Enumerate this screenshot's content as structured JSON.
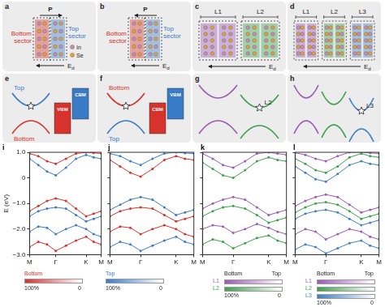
{
  "diagrams": [
    {
      "panel": "a",
      "polarization": "P",
      "direction": "right",
      "sectors": [
        [
          "Bottom",
          "sector"
        ],
        [
          "Top",
          "sector"
        ]
      ],
      "atoms": [
        "In",
        "Se"
      ],
      "field": {
        "text": "E",
        "sub": "d"
      }
    },
    {
      "panel": "b",
      "polarization": "P",
      "direction": "left",
      "sectors": [
        [
          "Bottom",
          "sector"
        ],
        [
          "Top",
          "sector"
        ]
      ],
      "field": {
        "text": "E",
        "sub": "d"
      }
    },
    {
      "panel": "c",
      "layers": [
        "L1",
        "L2"
      ],
      "field": {
        "text": "E",
        "sub": "d"
      }
    },
    {
      "panel": "d",
      "layers": [
        "L1",
        "L2",
        "L3"
      ],
      "field": {
        "text": "E",
        "sub": "d"
      }
    },
    {
      "panel": "e",
      "bands": [
        "Top",
        "Bottom"
      ],
      "boxes": [
        {
          "label": "VBM",
          "band": "Bottom"
        },
        {
          "label": "CBM",
          "band": "Top"
        }
      ]
    },
    {
      "panel": "f",
      "bands": [
        "Bottom",
        "Top"
      ],
      "boxes": [
        {
          "label": "CBM",
          "band": "Bottom"
        },
        {
          "label": "VBM",
          "band": "Top"
        }
      ]
    },
    {
      "panel": "g",
      "bands": [
        "L1",
        "L2"
      ],
      "star_label": "L2"
    },
    {
      "panel": "h",
      "bands": [
        "L1",
        "L2",
        "L3"
      ],
      "star_label": "L3"
    }
  ],
  "chart_data": [
    {
      "type": "line",
      "panel": "i",
      "y_label": "E (eV)",
      "tick_labels": true,
      "grid": false,
      "marker": "circle",
      "line_style": "solid",
      "x": [
        0,
        0.289,
        0.577,
        0.866,
        1.2,
        1.533,
        1.866,
        2.116,
        2.366
      ],
      "xlim": [
        0,
        2.366
      ],
      "xticks": [
        {
          "value": 0,
          "label": "M"
        },
        {
          "value": 0.866,
          "label": "Γ"
        },
        {
          "value": 1.866,
          "label": "K"
        },
        {
          "value": 2.366,
          "label": "M"
        }
      ],
      "ylim": [
        -3,
        1
      ],
      "yticks": [
        {
          "value": -3,
          "label": "−3.0"
        },
        {
          "value": -2,
          "label": "−2.0"
        },
        {
          "value": -1,
          "label": "−1.0"
        },
        0,
        {
          "value": 1,
          "label": "1.0"
        }
      ],
      "series": [
        {
          "name": "Top",
          "color": "#3a7bc8",
          "values": [
            0.75,
            0.5,
            0.25,
            0.1,
            0.4,
            0.75,
            0.9,
            0.8,
            0.75
          ]
        },
        {
          "name": "Bottom",
          "color": "#d7322b",
          "values": [
            0.95,
            0.85,
            0.65,
            0.55,
            0.75,
            0.95,
            1.0,
            0.98,
            0.95
          ]
        },
        {
          "name": "Bottom",
          "color": "#d7322b",
          "values": [
            -1.3,
            -1.1,
            -0.9,
            -0.8,
            -0.9,
            -1.2,
            -1.5,
            -1.4,
            -1.3
          ]
        },
        {
          "name": "Top",
          "color": "#3a7bc8",
          "values": [
            -1.5,
            -1.3,
            -1.2,
            -1.15,
            -1.2,
            -1.45,
            -1.7,
            -1.6,
            -1.5
          ]
        },
        {
          "name": "Top",
          "color": "#3a7bc8",
          "values": [
            -2.1,
            -1.9,
            -1.95,
            -2.2,
            -2.0,
            -1.85,
            -2.0,
            -2.2,
            -2.3
          ]
        },
        {
          "name": "Bottom",
          "color": "#d7322b",
          "values": [
            -2.7,
            -2.5,
            -2.6,
            -2.85,
            -2.65,
            -2.45,
            -2.3,
            -2.5,
            -2.6
          ]
        }
      ]
    },
    {
      "type": "line",
      "panel": "j",
      "tick_labels": "x",
      "grid": false,
      "marker": "circle",
      "line_style": "solid",
      "x": [
        0,
        0.289,
        0.577,
        0.866,
        1.2,
        1.533,
        1.866,
        2.116,
        2.366
      ],
      "xlim": [
        0,
        2.366
      ],
      "xticks": [
        {
          "value": 0,
          "label": "M"
        },
        {
          "value": 0.866,
          "label": "Γ"
        },
        {
          "value": 1.866,
          "label": "K"
        },
        {
          "value": 2.366,
          "label": "M"
        }
      ],
      "ylim": [
        -3,
        1
      ],
      "yticks": [
        {
          "value": -3,
          "label": "−3.0"
        },
        {
          "value": -2,
          "label": "−2.0"
        },
        {
          "value": -1,
          "label": "−1.0"
        },
        0,
        {
          "value": 1,
          "label": "1.0"
        }
      ],
      "series": [
        {
          "name": "Bottom",
          "color": "#d7322b",
          "values": [
            0.7,
            0.45,
            0.2,
            0.05,
            0.35,
            0.7,
            0.85,
            0.75,
            0.7
          ]
        },
        {
          "name": "Top",
          "color": "#3a7bc8",
          "values": [
            0.95,
            0.85,
            0.65,
            0.5,
            0.75,
            0.95,
            1.0,
            0.97,
            0.95
          ]
        },
        {
          "name": "Top",
          "color": "#3a7bc8",
          "values": [
            -1.25,
            -1.05,
            -0.85,
            -0.75,
            -0.85,
            -1.15,
            -1.45,
            -1.35,
            -1.25
          ]
        },
        {
          "name": "Bottom",
          "color": "#d7322b",
          "values": [
            -1.5,
            -1.3,
            -1.2,
            -1.15,
            -1.2,
            -1.45,
            -1.7,
            -1.6,
            -1.5
          ]
        },
        {
          "name": "Bottom",
          "color": "#d7322b",
          "values": [
            -2.1,
            -1.9,
            -1.95,
            -2.2,
            -2.0,
            -1.85,
            -2.0,
            -2.2,
            -2.3
          ]
        },
        {
          "name": "Top",
          "color": "#3a7bc8",
          "values": [
            -2.7,
            -2.5,
            -2.6,
            -2.85,
            -2.65,
            -2.45,
            -2.3,
            -2.5,
            -2.6
          ]
        }
      ]
    },
    {
      "type": "line",
      "panel": "k",
      "tick_labels": "x",
      "grid": false,
      "marker": "circle",
      "line_style": "solid",
      "x": [
        0,
        0.289,
        0.577,
        0.866,
        1.2,
        1.533,
        1.866,
        2.116,
        2.366
      ],
      "xlim": [
        0,
        2.366
      ],
      "xticks": [
        {
          "value": 0,
          "label": "M"
        },
        {
          "value": 0.866,
          "label": "Γ"
        },
        {
          "value": 1.866,
          "label": "K"
        },
        {
          "value": 2.366,
          "label": "M"
        }
      ],
      "ylim": [
        -3,
        1
      ],
      "yticks": [
        {
          "value": -3,
          "label": "−3.0"
        },
        {
          "value": -2,
          "label": "−2.0"
        },
        {
          "value": -1,
          "label": "−1.0"
        },
        0,
        {
          "value": 1,
          "label": "1.0"
        }
      ],
      "series": [
        {
          "name": "L2",
          "color": "#3aa14a",
          "values": [
            0.6,
            0.35,
            0.1,
            0.0,
            0.3,
            0.65,
            0.8,
            0.7,
            0.65
          ]
        },
        {
          "name": "L1",
          "color": "#9b59b6",
          "values": [
            0.95,
            0.75,
            0.5,
            0.4,
            0.65,
            0.95,
            1.0,
            0.95,
            0.9
          ]
        },
        {
          "name": "L1",
          "color": "#9b59b6",
          "values": [
            -1.2,
            -1.0,
            -0.85,
            -0.75,
            -0.85,
            -1.15,
            -1.45,
            -1.35,
            -1.25
          ]
        },
        {
          "name": "L2",
          "color": "#3aa14a",
          "values": [
            -1.5,
            -1.3,
            -1.15,
            -1.1,
            -1.2,
            -1.45,
            -1.75,
            -1.65,
            -1.55
          ]
        },
        {
          "name": "L1",
          "color": "#9b59b6",
          "values": [
            -2.0,
            -1.85,
            -1.9,
            -2.15,
            -2.0,
            -1.8,
            -1.95,
            -2.1,
            -2.2
          ]
        },
        {
          "name": "L2",
          "color": "#3aa14a",
          "values": [
            -2.6,
            -2.4,
            -2.5,
            -2.75,
            -2.55,
            -2.35,
            -2.25,
            -2.45,
            -2.55
          ]
        }
      ]
    },
    {
      "type": "line",
      "panel": "l",
      "tick_labels": "x",
      "grid": false,
      "marker": "circle",
      "line_style": "solid",
      "x": [
        0,
        0.289,
        0.577,
        0.866,
        1.2,
        1.533,
        1.866,
        2.116,
        2.366
      ],
      "xlim": [
        0,
        2.366
      ],
      "xticks": [
        {
          "value": 0,
          "label": "M"
        },
        {
          "value": 0.866,
          "label": "Γ"
        },
        {
          "value": 1.866,
          "label": "K"
        },
        {
          "value": 2.366,
          "label": "M"
        }
      ],
      "ylim": [
        -3,
        1
      ],
      "yticks": [
        {
          "value": -3,
          "label": "−3.0"
        },
        {
          "value": -2,
          "label": "−2.0"
        },
        {
          "value": -1,
          "label": "−1.0"
        },
        0,
        {
          "value": 1,
          "label": "1.0"
        }
      ],
      "series": [
        {
          "name": "L3",
          "color": "#3f7fc4",
          "values": [
            0.45,
            0.2,
            -0.05,
            -0.15,
            0.15,
            0.5,
            0.65,
            0.55,
            0.5
          ]
        },
        {
          "name": "L2",
          "color": "#3aa14a",
          "values": [
            0.75,
            0.55,
            0.3,
            0.2,
            0.45,
            0.8,
            0.95,
            0.85,
            0.8
          ]
        },
        {
          "name": "L1",
          "color": "#9b59b6",
          "values": [
            0.98,
            0.9,
            0.75,
            0.65,
            0.85,
            1.0,
            1.0,
            0.98,
            0.95
          ]
        },
        {
          "name": "L1",
          "color": "#9b59b6",
          "values": [
            -1.1,
            -0.9,
            -0.75,
            -0.65,
            -0.75,
            -1.05,
            -1.35,
            -1.25,
            -1.15
          ]
        },
        {
          "name": "L2",
          "color": "#3aa14a",
          "values": [
            -1.35,
            -1.15,
            -1.0,
            -0.95,
            -1.05,
            -1.3,
            -1.6,
            -1.5,
            -1.4
          ]
        },
        {
          "name": "L3",
          "color": "#3f7fc4",
          "values": [
            -1.6,
            -1.4,
            -1.3,
            -1.25,
            -1.35,
            -1.6,
            -1.85,
            -1.75,
            -1.65
          ]
        },
        {
          "name": "L1",
          "color": "#9b59b6",
          "values": [
            -2.2,
            -2.0,
            -2.1,
            -2.4,
            -2.2,
            -2.0,
            -2.1,
            -2.3,
            -2.4
          ]
        },
        {
          "name": "L3",
          "color": "#3f7fc4",
          "values": [
            -2.8,
            -2.6,
            -2.7,
            -2.95,
            -2.75,
            -2.55,
            -2.45,
            -2.65,
            -2.75
          ]
        }
      ]
    }
  ],
  "legends": [
    {
      "under": [
        "i",
        "j"
      ],
      "entries": [
        "Bottom",
        "Top"
      ],
      "colorbar": {
        "range": [
          100,
          0
        ],
        "ticks": [
          {
            "value": 100,
            "label": "100%"
          },
          0
        ]
      }
    },
    {
      "under": [
        "k"
      ],
      "ends": [
        "Bottom",
        "Top"
      ],
      "entries": [
        "L1",
        "L2"
      ],
      "colorbar": {
        "range": [
          100,
          0
        ],
        "ticks": [
          {
            "value": 100,
            "label": "100%"
          },
          0
        ]
      }
    },
    {
      "under": [
        "l"
      ],
      "ends": [
        "Bottom",
        "Top"
      ],
      "entries": [
        "L1",
        "L2",
        "L3"
      ],
      "colorbar": {
        "range": [
          100,
          0
        ],
        "ticks": [
          {
            "value": 100,
            "label": "100%"
          },
          0
        ]
      }
    }
  ]
}
